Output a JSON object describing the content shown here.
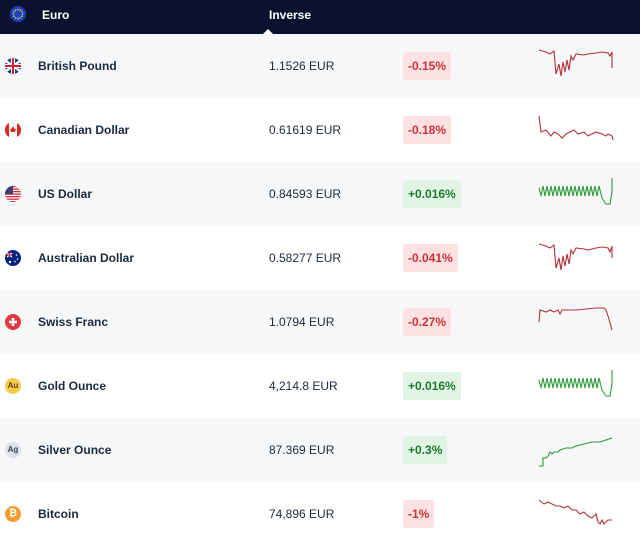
{
  "header": {
    "base": "Euro",
    "inverse": "Inverse"
  },
  "rows": [
    {
      "name": "British Pound",
      "rate": "1.1526 EUR",
      "change": "-0.15%"
    },
    {
      "name": "Canadian Dollar",
      "rate": "0.61619 EUR",
      "change": "-0.18%"
    },
    {
      "name": "US Dollar",
      "rate": "0.84593 EUR",
      "change": "+0.016%"
    },
    {
      "name": "Australian Dollar",
      "rate": "0.58277 EUR",
      "change": "-0.041%"
    },
    {
      "name": "Swiss Franc",
      "rate": "1.0794 EUR",
      "change": "-0.27%"
    },
    {
      "icon": "Au",
      "name": "Gold Ounce",
      "rate": "4,214.8 EUR",
      "change": "+0.016%"
    },
    {
      "icon": "Ag",
      "name": "Silver Ounce",
      "rate": "87.369 EUR",
      "change": "+0.3%"
    },
    {
      "icon": "₿",
      "name": "Bitcoin",
      "rate": "74,896 EUR",
      "change": "-1%"
    }
  ]
}
